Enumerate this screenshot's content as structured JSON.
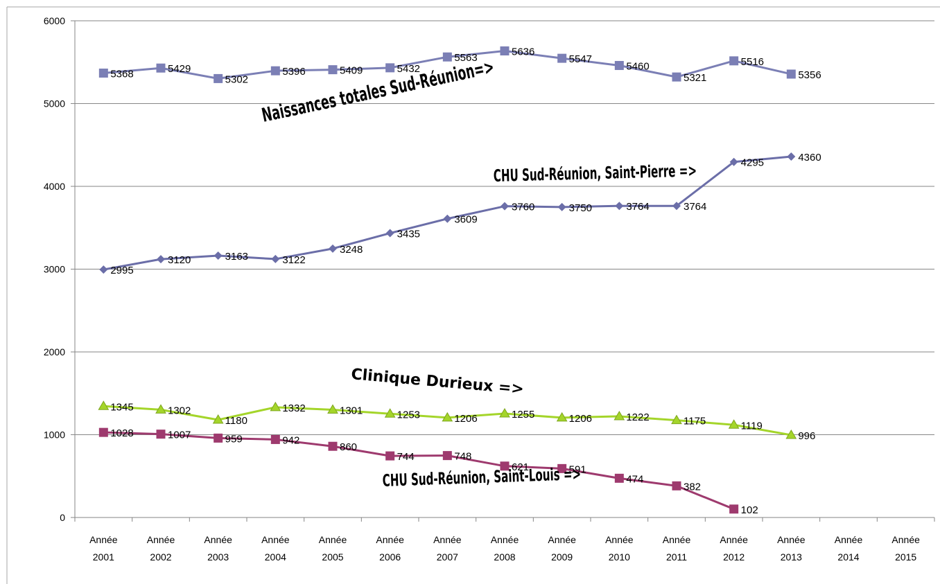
{
  "chart_data": {
    "type": "line",
    "categories": [
      "Année 2001",
      "Année 2002",
      "Année 2003",
      "Année 2004",
      "Année 2005",
      "Année 2006",
      "Année 2007",
      "Année 2008",
      "Année 2009",
      "Année 2010",
      "Année 2011",
      "Année 2012",
      "Année 2013",
      "Année 2014",
      "Année 2015"
    ],
    "ylim": [
      0,
      6000
    ],
    "yticks": [
      0,
      1000,
      2000,
      3000,
      4000,
      5000,
      6000
    ],
    "grid": true,
    "legend": "none",
    "series": [
      {
        "key": "total",
        "color": "#7b7fb5",
        "marker": "square",
        "values": [
          5368,
          5429,
          5302,
          5396,
          5409,
          5432,
          5563,
          5636,
          5547,
          5460,
          5321,
          5516,
          5356,
          null,
          null
        ]
      },
      {
        "key": "saint_pierre",
        "color": "#6b6ea8",
        "marker": "diamond",
        "values": [
          2995,
          3120,
          3163,
          3122,
          3248,
          3435,
          3609,
          3760,
          3750,
          3764,
          3764,
          4295,
          4360,
          null,
          null
        ]
      },
      {
        "key": "durieux",
        "color": "#a4d52a",
        "marker": "triangle",
        "values": [
          1345,
          1302,
          1180,
          1332,
          1301,
          1253,
          1206,
          1255,
          1206,
          1222,
          1175,
          1119,
          996,
          null,
          null
        ]
      },
      {
        "key": "saint_louis",
        "color": "#9e3a6e",
        "marker": "square",
        "values": [
          1028,
          1007,
          959,
          942,
          860,
          744,
          748,
          621,
          591,
          474,
          382,
          102,
          null,
          null,
          null
        ]
      }
    ],
    "annotations": {
      "total": "Naissances totales Sud-Réunion=>",
      "saint_pierre": "CHU Sud-Réunion, Saint-Pierre =>",
      "durieux": "Clinique Durieux =>",
      "saint_louis": "CHU Sud-Réunion, Saint-Louis =>"
    }
  }
}
